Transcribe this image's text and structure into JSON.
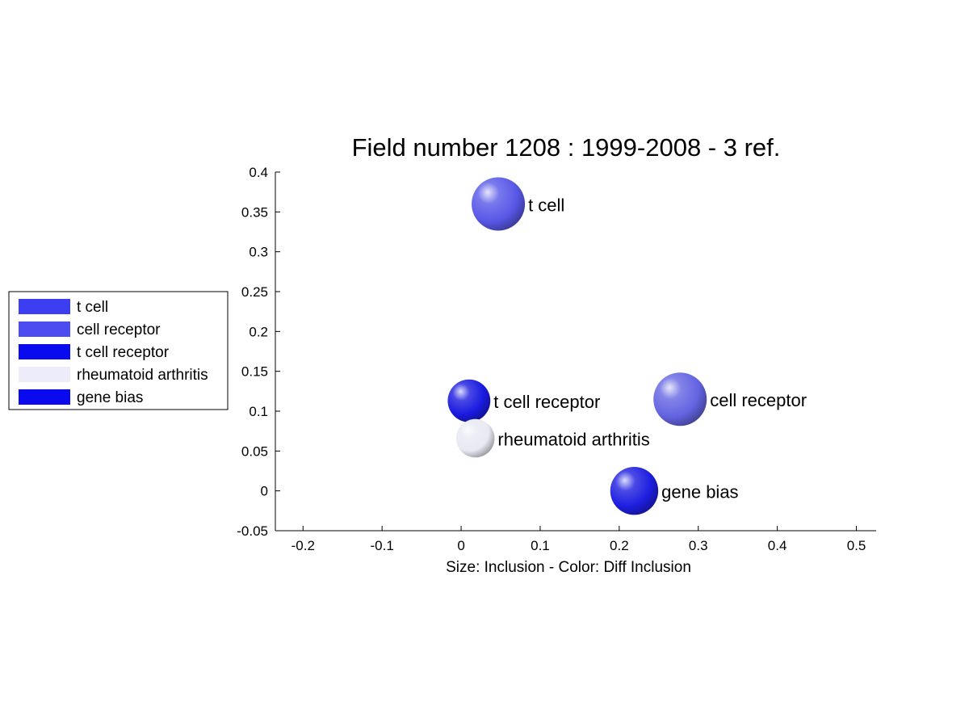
{
  "chart_data": {
    "type": "scatter",
    "title": "Field number 1208 : 1999-2008  - 3 ref.",
    "xlabel": "Size: Inclusion - Color: Diff Inclusion",
    "ylabel": "",
    "xlim": [
      -0.235,
      0.525
    ],
    "ylim": [
      -0.05,
      0.4
    ],
    "x_ticks": [
      -0.2,
      -0.1,
      0,
      0.1,
      0.2,
      0.3,
      0.4,
      0.5
    ],
    "x_tick_labels": [
      "-0.2",
      "-0.1",
      "0",
      "0.1",
      "0.2",
      "0.3",
      "0.4",
      "0.5"
    ],
    "y_ticks": [
      -0.05,
      0,
      0.05,
      0.1,
      0.15,
      0.2,
      0.25,
      0.3,
      0.35,
      0.4
    ],
    "y_tick_labels": [
      "-0.05",
      "0",
      "0.05",
      "0.1",
      "0.15",
      "0.2",
      "0.25",
      "0.3",
      "0.35",
      "0.4"
    ],
    "grid": false,
    "legend_position": "left",
    "points": [
      {
        "label": "t cell",
        "x": 0.047,
        "y": 0.36,
        "size": 1.0,
        "color": "#5858e8"
      },
      {
        "label": "cell receptor",
        "x": 0.277,
        "y": 0.115,
        "size": 1.0,
        "color": "#6464e2"
      },
      {
        "label": "t cell receptor",
        "x": 0.01,
        "y": 0.113,
        "size": 0.8,
        "color": "#1a1ae0"
      },
      {
        "label": "rheumatoid arthritis",
        "x": 0.018,
        "y": 0.066,
        "size": 0.72,
        "color": "#e9e9f2"
      },
      {
        "label": "gene bias",
        "x": 0.219,
        "y": 0.0,
        "size": 0.9,
        "color": "#1e1ee0"
      }
    ],
    "legend": [
      {
        "label": "t cell",
        "color": "#3d3df2"
      },
      {
        "label": "cell receptor",
        "color": "#4c4cf0"
      },
      {
        "label": "t cell receptor",
        "color": "#0a0aee"
      },
      {
        "label": "rheumatoid arthritis",
        "color": "#ececfb"
      },
      {
        "label": "gene bias",
        "color": "#0a0aee"
      }
    ]
  }
}
